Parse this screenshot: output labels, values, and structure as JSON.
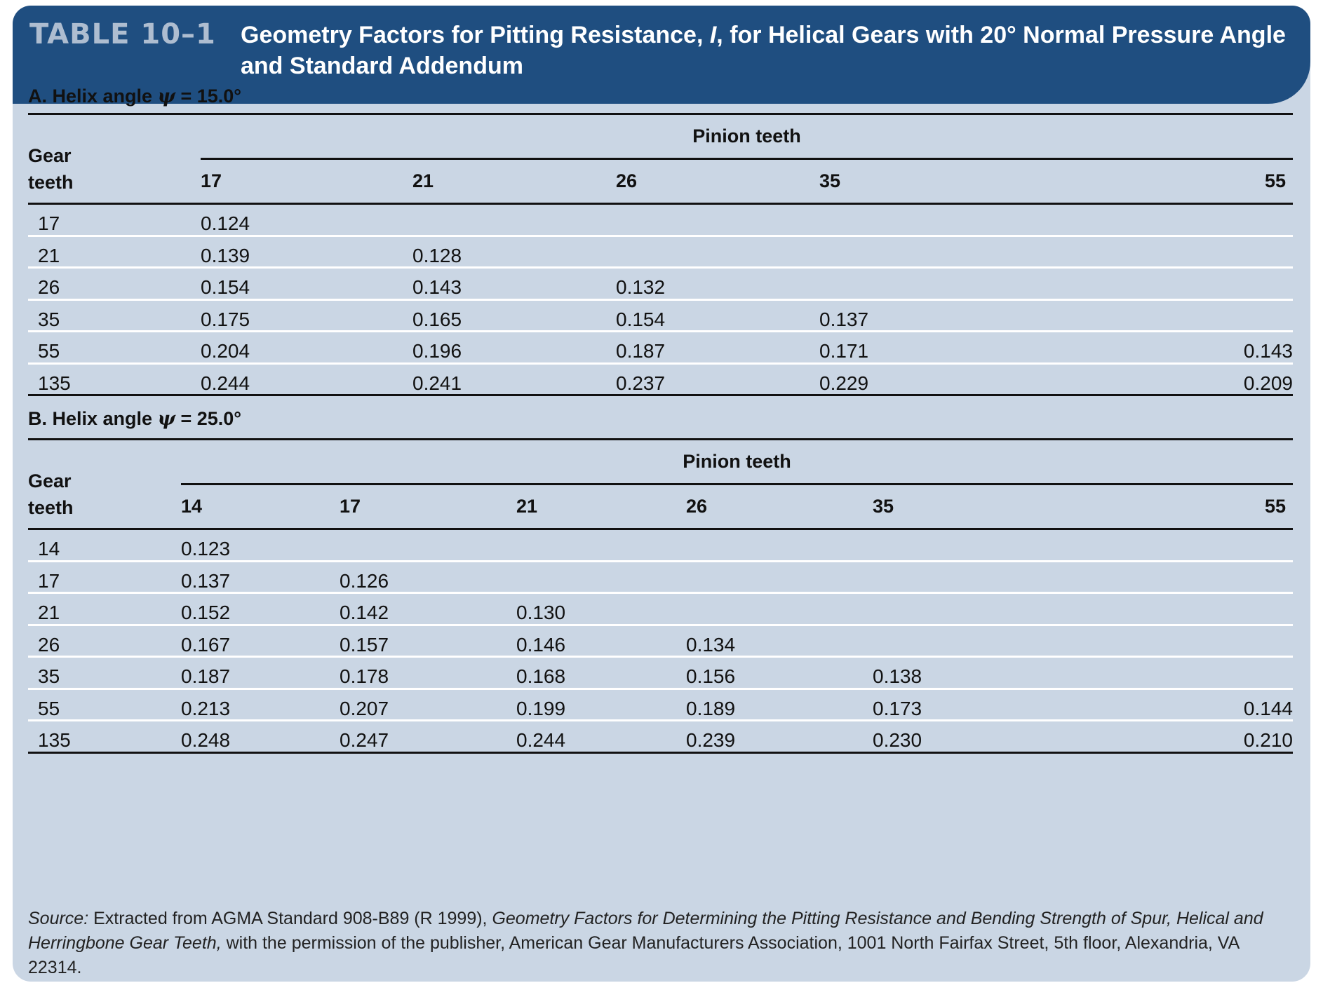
{
  "header": {
    "label": "TABLE 10–1",
    "title_part1": "Geometry Factors for Pitting Resistance, ",
    "title_symbol": "I",
    "title_part2": ", for Helical Gears with 20° Normal Pressure Angle and Standard Addendum"
  },
  "sectionA": {
    "title_prefix": "A. Helix angle ",
    "psi": "ψ",
    "title_suffix": " = 15.0°",
    "gear_label_1": "Gear",
    "gear_label_2": "teeth",
    "pinion_label": "Pinion teeth",
    "columns": [
      "17",
      "21",
      "26",
      "35",
      "55"
    ],
    "rows": [
      {
        "gear": "17",
        "values": [
          "0.124",
          "",
          "",
          "",
          ""
        ]
      },
      {
        "gear": "21",
        "values": [
          "0.139",
          "0.128",
          "",
          "",
          ""
        ]
      },
      {
        "gear": "26",
        "values": [
          "0.154",
          "0.143",
          "0.132",
          "",
          ""
        ]
      },
      {
        "gear": "35",
        "values": [
          "0.175",
          "0.165",
          "0.154",
          "0.137",
          ""
        ]
      },
      {
        "gear": "55",
        "values": [
          "0.204",
          "0.196",
          "0.187",
          "0.171",
          "0.143"
        ]
      },
      {
        "gear": "135",
        "values": [
          "0.244",
          "0.241",
          "0.237",
          "0.229",
          "0.209"
        ]
      }
    ]
  },
  "sectionB": {
    "title_prefix": "B. Helix angle ",
    "psi": "ψ",
    "title_suffix": " = 25.0°",
    "gear_label_1": "Gear",
    "gear_label_2": "teeth",
    "pinion_label": "Pinion teeth",
    "columns": [
      "14",
      "17",
      "21",
      "26",
      "35",
      "55"
    ],
    "rows": [
      {
        "gear": "14",
        "values": [
          "0.123",
          "",
          "",
          "",
          "",
          ""
        ]
      },
      {
        "gear": "17",
        "values": [
          "0.137",
          "0.126",
          "",
          "",
          "",
          ""
        ]
      },
      {
        "gear": "21",
        "values": [
          "0.152",
          "0.142",
          "0.130",
          "",
          "",
          ""
        ]
      },
      {
        "gear": "26",
        "values": [
          "0.167",
          "0.157",
          "0.146",
          "0.134",
          "",
          ""
        ]
      },
      {
        "gear": "35",
        "values": [
          "0.187",
          "0.178",
          "0.168",
          "0.156",
          "0.138",
          ""
        ]
      },
      {
        "gear": "55",
        "values": [
          "0.213",
          "0.207",
          "0.199",
          "0.189",
          "0.173",
          "0.144"
        ]
      },
      {
        "gear": "135",
        "values": [
          "0.248",
          "0.247",
          "0.244",
          "0.239",
          "0.230",
          "0.210"
        ]
      }
    ]
  },
  "source": {
    "label": "Source:",
    "text1": " Extracted from AGMA Standard 908-B89 (R 1999), ",
    "title": "Geometry Factors for Determining the Pitting Resistance and Bending Strength of Spur, Helical and Herringbone Gear Teeth,",
    "text2": " with the permission of the publisher, American Gear Manufacturers Association, 1001 North Fairfax Street, 5th floor, Alexandria, VA 22314."
  }
}
